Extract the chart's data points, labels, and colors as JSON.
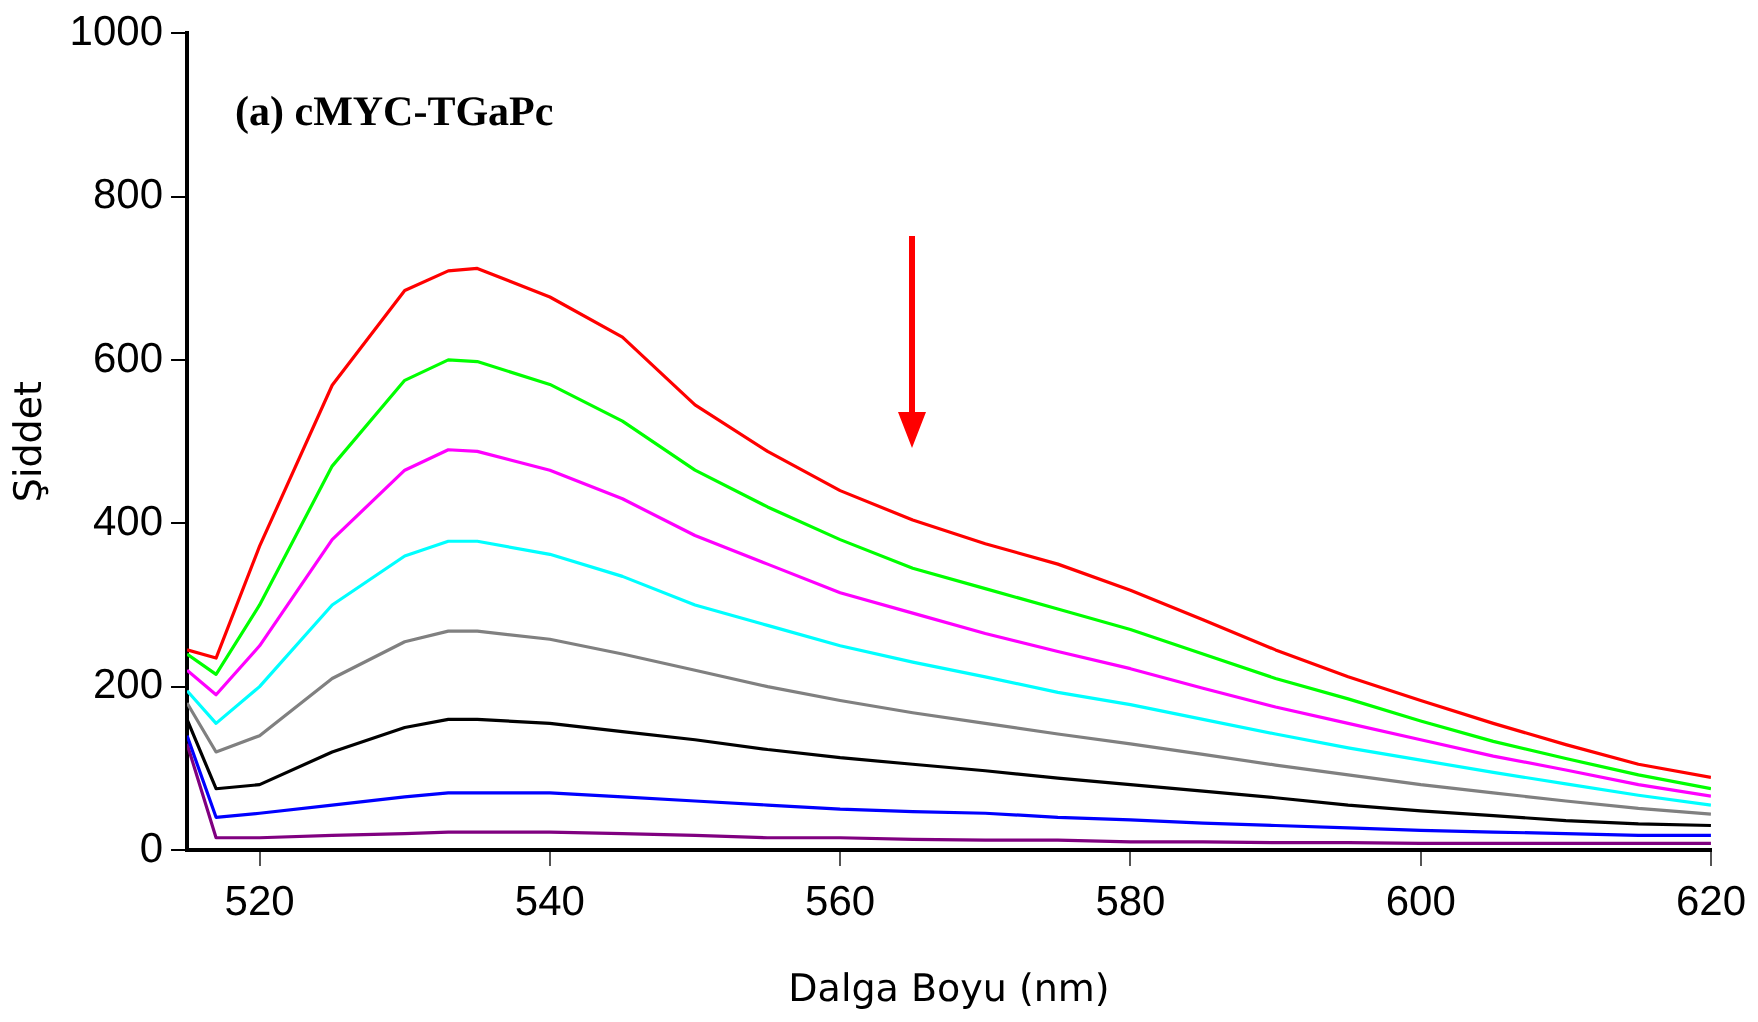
{
  "chart_data": {
    "type": "line",
    "xlabel": "Dalga Boyu (nm)",
    "ylabel": "Şiddet",
    "annotations": [
      "(a) cMYC-TGaPc"
    ],
    "marker": "none",
    "xlim": [
      515,
      620
    ],
    "xticks": [
      520,
      540,
      560,
      580,
      600,
      620
    ],
    "ylim": [
      0,
      1000
    ],
    "yticks": [
      0,
      200,
      400,
      600,
      800,
      1000
    ],
    "x": [
      515,
      517,
      520,
      525,
      530,
      533,
      535,
      540,
      545,
      550,
      555,
      560,
      565,
      570,
      575,
      580,
      585,
      590,
      595,
      600,
      605,
      610,
      615,
      620
    ],
    "series": [
      {
        "color": "#ff0000",
        "values": [
          245,
          235,
          372,
          569,
          685,
          709,
          712,
          677,
          628,
          545,
          488,
          440,
          404,
          375,
          350,
          318,
          282,
          245,
          212,
          183,
          155,
          129,
          105,
          89
        ]
      },
      {
        "color": "#00ff00",
        "values": [
          240,
          215,
          300,
          470,
          575,
          600,
          598,
          570,
          525,
          465,
          420,
          380,
          345,
          320,
          295,
          270,
          240,
          210,
          185,
          158,
          133,
          112,
          92,
          75
        ]
      },
      {
        "color": "#ff00ff",
        "values": [
          220,
          190,
          250,
          380,
          465,
          490,
          488,
          465,
          430,
          385,
          350,
          315,
          290,
          265,
          243,
          222,
          198,
          175,
          155,
          135,
          115,
          98,
          80,
          66
        ]
      },
      {
        "color": "#00ffff",
        "values": [
          195,
          155,
          200,
          300,
          360,
          378,
          378,
          362,
          335,
          300,
          275,
          250,
          230,
          212,
          193,
          178,
          160,
          142,
          125,
          110,
          95,
          81,
          67,
          55
        ]
      },
      {
        "color": "#808080",
        "values": [
          180,
          120,
          140,
          210,
          255,
          268,
          268,
          258,
          240,
          220,
          200,
          183,
          168,
          155,
          142,
          130,
          117,
          104,
          92,
          80,
          70,
          60,
          51,
          44
        ]
      },
      {
        "color": "#000000",
        "values": [
          160,
          75,
          80,
          120,
          150,
          160,
          160,
          155,
          145,
          135,
          123,
          113,
          105,
          97,
          88,
          80,
          72,
          64,
          55,
          48,
          42,
          36,
          32,
          30
        ]
      },
      {
        "color": "#0000ff",
        "values": [
          140,
          40,
          45,
          55,
          65,
          70,
          70,
          70,
          65,
          60,
          55,
          50,
          47,
          45,
          40,
          37,
          33,
          30,
          27,
          24,
          22,
          20,
          18,
          18
        ]
      },
      {
        "color": "#800080",
        "values": [
          130,
          15,
          15,
          18,
          20,
          22,
          22,
          22,
          20,
          18,
          15,
          15,
          13,
          12,
          12,
          10,
          10,
          9,
          9,
          8,
          8,
          8,
          8,
          8
        ]
      }
    ]
  }
}
